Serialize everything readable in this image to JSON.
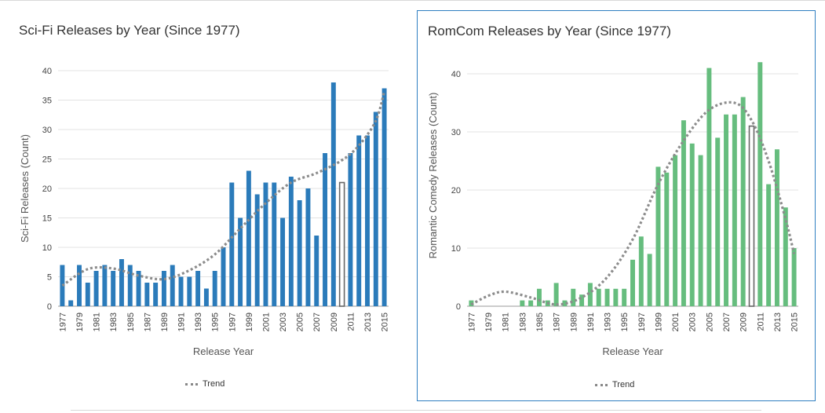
{
  "chart_data": [
    {
      "type": "bar",
      "title": "Sci-Fi Releases by Year (Since 1977)",
      "xlabel": "Release Year",
      "ylabel": "Sci-Fi Releases (Count)",
      "ylim": [
        0,
        40
      ],
      "yticks": [
        0,
        5,
        10,
        15,
        20,
        25,
        30,
        35,
        40
      ],
      "grid": true,
      "legend": "bottom-center",
      "bar_color": "#2b7bba",
      "highlight_color": "#666666",
      "highlight_year": 2010,
      "trend_label": "Trend",
      "trend_color": "#8c8c8c",
      "x": [
        1977,
        1978,
        1979,
        1980,
        1981,
        1982,
        1983,
        1984,
        1985,
        1986,
        1987,
        1988,
        1989,
        1990,
        1991,
        1992,
        1993,
        1994,
        1995,
        1996,
        1997,
        1998,
        1999,
        2000,
        2001,
        2002,
        2003,
        2004,
        2005,
        2006,
        2007,
        2008,
        2009,
        2010,
        2011,
        2012,
        2013,
        2014,
        2015
      ],
      "x_tick_labels": [
        "1977",
        "1979",
        "1981",
        "1983",
        "1985",
        "1987",
        "1989",
        "1991",
        "1993",
        "1995",
        "1997",
        "1999",
        "2001",
        "2003",
        "2005",
        "2007",
        "2009",
        "2011",
        "2013",
        "2015"
      ],
      "values": [
        7,
        1,
        7,
        4,
        6,
        7,
        6,
        8,
        7,
        6,
        4,
        4,
        6,
        7,
        5,
        5,
        6,
        3,
        6,
        10,
        21,
        15,
        23,
        19,
        21,
        21,
        15,
        22,
        18,
        20,
        12,
        26,
        38,
        21,
        26,
        29,
        29,
        33,
        37
      ],
      "trend": [
        [
          1977,
          3.5
        ],
        [
          1980,
          6.3
        ],
        [
          1983,
          6.4
        ],
        [
          1986,
          5.2
        ],
        [
          1989,
          4.6
        ],
        [
          1992,
          6.1
        ],
        [
          1995,
          8.8
        ],
        [
          1998,
          13.2
        ],
        [
          2001,
          17.5
        ],
        [
          2004,
          21
        ],
        [
          2007,
          22.6
        ],
        [
          2010,
          24.8
        ],
        [
          2012,
          27.3
        ],
        [
          2014,
          31.5
        ],
        [
          2015,
          36.5
        ]
      ]
    },
    {
      "type": "bar",
      "title": "RomCom Releases by Year (Since 1977)",
      "xlabel": "Release Year",
      "ylabel": "Romantic Comedy Releases (Count)",
      "ylim": [
        0,
        45
      ],
      "yticks": [
        0,
        10,
        20,
        30,
        40
      ],
      "grid": true,
      "legend": "bottom-center",
      "bar_color": "#66bd7e",
      "highlight_color": "#666666",
      "highlight_year": 2010,
      "trend_label": "Trend",
      "trend_color": "#8c8c8c",
      "x": [
        1977,
        1978,
        1979,
        1980,
        1981,
        1982,
        1983,
        1984,
        1985,
        1986,
        1987,
        1988,
        1989,
        1990,
        1991,
        1992,
        1993,
        1994,
        1995,
        1996,
        1997,
        1998,
        1999,
        2000,
        2001,
        2002,
        2003,
        2004,
        2005,
        2006,
        2007,
        2008,
        2009,
        2010,
        2011,
        2012,
        2013,
        2014,
        2015
      ],
      "x_tick_labels": [
        "1977",
        "1979",
        "1981",
        "1983",
        "1985",
        "1987",
        "1989",
        "1991",
        "1993",
        "1995",
        "1997",
        "1999",
        "2001",
        "2003",
        "2005",
        "2007",
        "2009",
        "2011",
        "2013",
        "2015"
      ],
      "values": [
        1,
        0,
        0,
        0,
        0,
        0,
        1,
        1,
        3,
        1,
        4,
        1,
        3,
        2,
        4,
        3,
        3,
        3,
        3,
        8,
        12,
        9,
        24,
        23,
        26,
        32,
        28,
        26,
        41,
        29,
        33,
        33,
        36,
        31,
        42,
        21,
        27,
        17,
        10
      ],
      "trend": [
        [
          1977,
          0.3
        ],
        [
          1979,
          1.8
        ],
        [
          1981,
          2.5
        ],
        [
          1984,
          1.5
        ],
        [
          1987,
          0.3
        ],
        [
          1990,
          1.5
        ],
        [
          1993,
          5
        ],
        [
          1996,
          11.5
        ],
        [
          1999,
          21
        ],
        [
          2002,
          28.5
        ],
        [
          2005,
          33.8
        ],
        [
          2008,
          35
        ],
        [
          2010,
          32
        ],
        [
          2012,
          25
        ],
        [
          2014,
          15
        ],
        [
          2015,
          9
        ]
      ]
    }
  ]
}
